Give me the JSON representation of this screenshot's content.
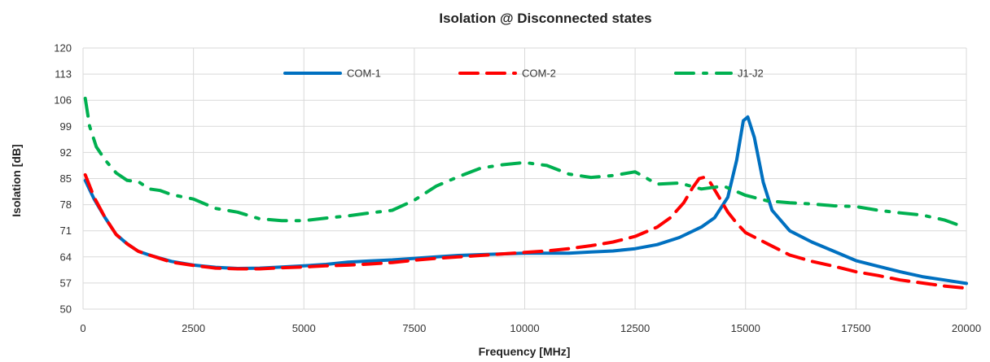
{
  "chart_data": {
    "type": "line",
    "title": "Isolation @ Disconnected states",
    "xlabel": "Frequency [MHz]",
    "ylabel": "Isolation [dB]",
    "xlim": [
      0,
      20000
    ],
    "ylim": [
      50,
      120
    ],
    "xticks": [
      0,
      2500,
      5000,
      7500,
      10000,
      12500,
      15000,
      17500,
      20000
    ],
    "yticks": [
      50,
      57,
      64,
      71,
      78,
      85,
      92,
      99,
      106,
      113,
      120
    ],
    "grid": true,
    "legend_position": "top-center",
    "series": [
      {
        "name": "COM-1",
        "color": "#0070C0",
        "style": "solid",
        "x": [
          50,
          250,
          500,
          750,
          1000,
          1250,
          1500,
          2000,
          2500,
          3000,
          3500,
          4000,
          4500,
          5000,
          5500,
          6000,
          6500,
          7000,
          7500,
          8000,
          8500,
          9000,
          9500,
          10000,
          10500,
          11000,
          11500,
          12000,
          12500,
          13000,
          13500,
          14000,
          14300,
          14600,
          14800,
          14950,
          15050,
          15200,
          15400,
          15600,
          16000,
          16500,
          17000,
          17500,
          18000,
          18500,
          19000,
          19500,
          20000
        ],
        "y": [
          84.5,
          79.5,
          74.5,
          70,
          67.5,
          65.5,
          64.5,
          62.8,
          61.8,
          61.2,
          60.9,
          61,
          61.3,
          61.6,
          62,
          62.6,
          62.9,
          63.2,
          63.6,
          64,
          64.4,
          64.6,
          64.8,
          65,
          65,
          65,
          65.3,
          65.6,
          66.2,
          67.3,
          69.2,
          72,
          74.5,
          80,
          90,
          100.5,
          101.5,
          96,
          84,
          76.5,
          71,
          68,
          65.5,
          63,
          61.5,
          60,
          58.7,
          57.8,
          56.9
        ]
      },
      {
        "name": "COM-2",
        "color": "#FF0000",
        "style": "dashed",
        "x": [
          50,
          250,
          500,
          750,
          1000,
          1250,
          1500,
          2000,
          2500,
          3000,
          3500,
          4000,
          4500,
          5000,
          5500,
          6000,
          6500,
          7000,
          7500,
          8000,
          8500,
          9000,
          9500,
          10000,
          10500,
          11000,
          11500,
          12000,
          12500,
          13000,
          13300,
          13600,
          13800,
          13950,
          14050,
          14200,
          14400,
          14600,
          14800,
          15000,
          15500,
          16000,
          16500,
          17000,
          17500,
          18000,
          18500,
          19000,
          19500,
          20000
        ],
        "y": [
          86,
          80,
          74.5,
          70,
          67.5,
          65.5,
          64.5,
          62.6,
          61.7,
          61,
          60.8,
          60.8,
          61.1,
          61.3,
          61.6,
          61.8,
          62.1,
          62.5,
          63.1,
          63.6,
          64,
          64.4,
          64.8,
          65.2,
          65.6,
          66.2,
          67,
          68,
          69.5,
          72,
          74.5,
          78.5,
          82.5,
          85,
          85.3,
          84,
          80,
          76,
          73,
          70.5,
          67.5,
          64.5,
          62.8,
          61.5,
          60,
          59,
          57.8,
          57,
          56.2,
          55.6
        ]
      },
      {
        "name": "J1-J2",
        "color": "#00B050",
        "style": "dashdot",
        "x": [
          50,
          150,
          300,
          500,
          750,
          1000,
          1250,
          1500,
          1750,
          2000,
          2500,
          3000,
          3500,
          4000,
          4500,
          5000,
          5500,
          6000,
          6500,
          7000,
          7500,
          8000,
          8500,
          9000,
          9500,
          10000,
          10500,
          11000,
          11500,
          12000,
          12500,
          13000,
          13500,
          14000,
          14500,
          15000,
          15500,
          16000,
          16500,
          17000,
          17500,
          18000,
          18500,
          19000,
          19500,
          19900
        ],
        "y": [
          106.5,
          99,
          93.5,
          90,
          86.5,
          84.5,
          84.2,
          82.2,
          81.8,
          80.7,
          79.5,
          77,
          76,
          74.2,
          73.7,
          73.7,
          74.4,
          75,
          75.8,
          76.5,
          79.2,
          83,
          85.5,
          87.8,
          88.7,
          89.3,
          88.5,
          86.2,
          85.3,
          85.8,
          86.8,
          83.5,
          83.8,
          82.2,
          83,
          80.5,
          79,
          78.5,
          78.2,
          77.7,
          77.5,
          76.5,
          75.8,
          75.2,
          73.9,
          72.2
        ]
      }
    ]
  }
}
